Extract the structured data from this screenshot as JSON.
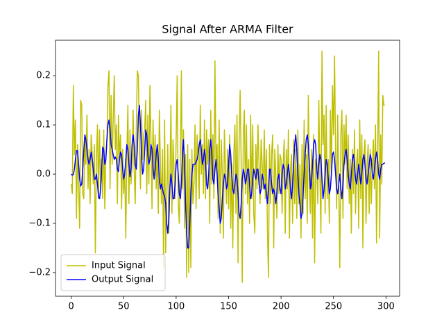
{
  "chart_data": {
    "type": "line",
    "title": "Signal After ARMA Filter",
    "x": [
      0,
      1,
      2,
      3,
      4,
      5,
      6,
      7,
      8,
      9,
      10,
      11,
      12,
      13,
      14,
      15,
      16,
      17,
      18,
      19,
      20,
      21,
      22,
      23,
      24,
      25,
      26,
      27,
      28,
      29,
      30,
      31,
      32,
      33,
      34,
      35,
      36,
      37,
      38,
      39,
      40,
      41,
      42,
      43,
      44,
      45,
      46,
      47,
      48,
      49,
      50,
      51,
      52,
      53,
      54,
      55,
      56,
      57,
      58,
      59,
      60,
      61,
      62,
      63,
      64,
      65,
      66,
      67,
      68,
      69,
      70,
      71,
      72,
      73,
      74,
      75,
      76,
      77,
      78,
      79,
      80,
      81,
      82,
      83,
      84,
      85,
      86,
      87,
      88,
      89,
      90,
      91,
      92,
      93,
      94,
      95,
      96,
      97,
      98,
      99,
      100,
      101,
      102,
      103,
      104,
      105,
      106,
      107,
      108,
      109,
      110,
      111,
      112,
      113,
      114,
      115,
      116,
      117,
      118,
      119,
      120,
      121,
      122,
      123,
      124,
      125,
      126,
      127,
      128,
      129,
      130,
      131,
      132,
      133,
      134,
      135,
      136,
      137,
      138,
      139,
      140,
      141,
      142,
      143,
      144,
      145,
      146,
      147,
      148,
      149,
      150,
      151,
      152,
      153,
      154,
      155,
      156,
      157,
      158,
      159,
      160,
      161,
      162,
      163,
      164,
      165,
      166,
      167,
      168,
      169,
      170,
      171,
      172,
      173,
      174,
      175,
      176,
      177,
      178,
      179,
      180,
      181,
      182,
      183,
      184,
      185,
      186,
      187,
      188,
      189,
      190,
      191,
      192,
      193,
      194,
      195,
      196,
      197,
      198,
      199,
      200,
      201,
      202,
      203,
      204,
      205,
      206,
      207,
      208,
      209,
      210,
      211,
      212,
      213,
      214,
      215,
      216,
      217,
      218,
      219,
      220,
      221,
      222,
      223,
      224,
      225,
      226,
      227,
      228,
      229,
      230,
      231,
      232,
      233,
      234,
      235,
      236,
      237,
      238,
      239,
      240,
      241,
      242,
      243,
      244,
      245,
      246,
      247,
      248,
      249,
      250,
      251,
      252,
      253,
      254,
      255,
      256,
      257,
      258,
      259,
      260,
      261,
      262,
      263,
      264,
      265,
      266,
      267,
      268,
      269,
      270,
      271,
      272,
      273,
      274,
      275,
      276,
      277,
      278,
      279,
      280,
      281,
      282,
      283,
      284,
      285,
      286,
      287,
      288,
      289,
      290,
      291,
      292,
      293,
      294,
      295,
      296,
      297,
      298,
      299
    ],
    "series": [
      {
        "name": "Input Signal",
        "color": "#bfbf00",
        "values": [
          -0.02,
          -0.04,
          0.18,
          0.04,
          0.11,
          -0.09,
          0.06,
          -0.02,
          -0.11,
          0.15,
          0.14,
          -0.04,
          -0.05,
          0.08,
          0.02,
          0.12,
          -0.03,
          0.05,
          -0.06,
          0.08,
          0.04,
          -0.02,
          0.06,
          -0.16,
          0.03,
          0.1,
          -0.05,
          0.09,
          -0.03,
          0.03,
          -0.05,
          0.09,
          -0.07,
          0.03,
          0.07,
          0.18,
          0.21,
          -0.03,
          0.16,
          0.02,
          0.11,
          0.2,
          0.05,
          0.1,
          -0.06,
          0.12,
          0.03,
          0.08,
          -0.07,
          0.05,
          -0.04,
          0.01,
          -0.13,
          0.04,
          0.14,
          -0.06,
          0.09,
          -0.02,
          0.02,
          0.13,
          0.01,
          -0.06,
          0.09,
          0.21,
          0.2,
          0.06,
          -0.03,
          0.13,
          0.03,
          0.08,
          0.09,
          0.15,
          -0.04,
          0.12,
          -0.02,
          0.18,
          0.07,
          -0.07,
          0.11,
          0.0,
          0.08,
          -0.03,
          0.05,
          -0.08,
          0.13,
          0.02,
          -0.06,
          0.05,
          -0.19,
          0.11,
          -0.16,
          -0.05,
          0.06,
          -0.12,
          -0.02,
          0.14,
          -0.08,
          0.07,
          0.01,
          -0.05,
          0.07,
          0.2,
          -0.06,
          -0.1,
          0.02,
          0.21,
          -0.03,
          0.09,
          -0.11,
          0.04,
          -0.21,
          0.06,
          -0.2,
          0.03,
          -0.19,
          0.05,
          -0.06,
          -0.02,
          0.1,
          -0.07,
          0.08,
          0.03,
          -0.05,
          0.14,
          0.0,
          0.06,
          -0.04,
          0.11,
          -0.05,
          0.09,
          0.02,
          0.07,
          -0.1,
          0.13,
          -0.02,
          0.08,
          -0.05,
          0.23,
          0.02,
          0.06,
          -0.09,
          0.11,
          -0.12,
          0.07,
          0.0,
          -0.13,
          0.09,
          0.01,
          -0.06,
          0.05,
          -0.07,
          0.08,
          -0.11,
          0.02,
          -0.15,
          0.04,
          0.1,
          -0.08,
          0.12,
          -0.18,
          0.06,
          0.17,
          0.02,
          -0.22,
          0.08,
          0.13,
          -0.04,
          0.1,
          -0.06,
          0.03,
          -0.1,
          0.12,
          -0.05,
          0.1,
          -0.08,
          -0.12,
          0.06,
          -0.03,
          0.1,
          0.02,
          -0.06,
          0.07,
          0.02,
          -0.03,
          0.09,
          -0.05,
          0.05,
          -0.11,
          -0.21,
          0.06,
          -0.06,
          0.04,
          0.08,
          -0.15,
          0.05,
          0.0,
          -0.09,
          0.06,
          -0.04,
          0.04,
          0.03,
          -0.08,
          0.02,
          0.07,
          -0.12,
          0.05,
          -0.03,
          0.09,
          -0.13,
          0.01,
          0.04,
          -0.1,
          0.07,
          -0.06,
          0.05,
          -0.09,
          0.09,
          -0.06,
          0.02,
          -0.13,
          0.06,
          -0.08,
          0.11,
          -0.05,
          0.04,
          -0.1,
          0.16,
          -0.03,
          -0.08,
          0.05,
          -0.13,
          0.08,
          -0.18,
          0.03,
          0.02,
          -0.06,
          0.15,
          0.0,
          -0.12,
          0.25,
          0.06,
          0.12,
          -0.08,
          0.14,
          -0.05,
          0.03,
          -0.1,
          0.13,
          0.0,
          0.18,
          0.08,
          0.24,
          0.04,
          -0.07,
          0.12,
          -0.02,
          -0.19,
          0.08,
          0.13,
          -0.09,
          0.1,
          0.02,
          0.12,
          -0.03,
          0.08,
          -0.06,
          0.03,
          -0.12,
          0.05,
          -0.04,
          0.09,
          -0.08,
          0.02,
          0.05,
          -0.11,
          0.11,
          -0.05,
          0.08,
          -0.15,
          0.04,
          0.07,
          -0.1,
          0.02,
          0.06,
          -0.08,
          0.05,
          -0.06,
          0.01,
          0.07,
          -0.03,
          0.1,
          -0.14,
          0.02,
          0.25,
          -0.13,
          0.08,
          -0.02,
          0.16,
          0.14,
          0.14
        ]
      },
      {
        "name": "Output Signal",
        "color": "#0000ff",
        "values": [
          0.0,
          -0.002,
          -0.001,
          0.01,
          0.03,
          0.048,
          0.048,
          0.02,
          -0.01,
          -0.024,
          -0.02,
          0.01,
          0.05,
          0.08,
          0.07,
          0.05,
          0.03,
          0.02,
          0.03,
          0.045,
          0.03,
          0.01,
          -0.01,
          -0.01,
          0.0,
          -0.02,
          -0.045,
          -0.05,
          -0.03,
          0.01,
          0.055,
          0.05,
          0.02,
          0.03,
          0.07,
          0.1,
          0.11,
          0.09,
          0.06,
          0.05,
          0.04,
          0.03,
          0.035,
          0.03,
          0.01,
          0.005,
          0.03,
          0.045,
          0.04,
          0.01,
          -0.01,
          0.0,
          0.03,
          0.06,
          0.05,
          0.02,
          -0.005,
          0.01,
          0.06,
          0.08,
          0.06,
          0.02,
          0.01,
          0.05,
          0.12,
          0.14,
          0.1,
          0.04,
          0.0,
          0.01,
          0.05,
          0.09,
          0.08,
          0.04,
          0.02,
          0.03,
          0.06,
          0.05,
          0.01,
          -0.01,
          0.01,
          0.04,
          0.06,
          0.03,
          -0.01,
          -0.03,
          -0.02,
          -0.03,
          -0.04,
          -0.045,
          -0.06,
          -0.1,
          -0.12,
          -0.09,
          -0.03,
          0.0,
          -0.02,
          -0.05,
          -0.05,
          -0.02,
          0.02,
          0.03,
          0.0,
          -0.04,
          -0.05,
          -0.02,
          0.04,
          0.07,
          0.02,
          -0.06,
          -0.12,
          -0.15,
          -0.15,
          -0.1,
          -0.04,
          0.0,
          0.02,
          0.02,
          0.02,
          0.025,
          0.03,
          0.04,
          0.06,
          0.07,
          0.05,
          0.02,
          0.03,
          0.05,
          0.03,
          -0.02,
          -0.03,
          0.0,
          0.05,
          0.07,
          0.04,
          -0.01,
          -0.02,
          0.01,
          0.03,
          0.0,
          -0.04,
          -0.07,
          -0.1,
          -0.09,
          -0.05,
          -0.02,
          0.0,
          -0.01,
          -0.03,
          -0.02,
          0.02,
          0.06,
          0.04,
          0.0,
          -0.03,
          -0.04,
          -0.02,
          0.0,
          -0.01,
          -0.04,
          -0.08,
          -0.09,
          -0.06,
          -0.01,
          0.01,
          0.0,
          -0.02,
          -0.01,
          0.01,
          0.01,
          -0.02,
          -0.05,
          -0.04,
          -0.01,
          0.01,
          0.0,
          -0.01,
          0.01,
          0.01,
          -0.02,
          -0.04,
          -0.03,
          0.0,
          -0.01,
          -0.03,
          -0.02,
          -0.04,
          -0.06,
          -0.03,
          0.01,
          0.01,
          -0.02,
          -0.04,
          -0.03,
          -0.04,
          -0.06,
          -0.04,
          -0.01,
          0.0,
          -0.03,
          -0.04,
          0.0,
          0.02,
          0.01,
          -0.03,
          -0.02,
          0.0,
          0.02,
          0.0,
          -0.03,
          -0.05,
          -0.02,
          0.02,
          0.06,
          0.08,
          0.05,
          0.0,
          -0.04,
          -0.06,
          -0.09,
          -0.08,
          -0.04,
          0.0,
          0.04,
          0.07,
          0.08,
          0.06,
          0.02,
          -0.03,
          -0.02,
          0.02,
          0.06,
          0.07,
          0.06,
          0.01,
          -0.01,
          0.02,
          0.04,
          0.03,
          -0.01,
          -0.05,
          -0.03,
          0.0,
          0.03,
          0.02,
          -0.01,
          -0.04,
          -0.03,
          0.0,
          0.04,
          0.045,
          0.03,
          0.0,
          -0.03,
          -0.04,
          -0.02,
          0.0,
          -0.03,
          -0.05,
          -0.02,
          0.02,
          0.04,
          0.05,
          0.03,
          0.0,
          -0.02,
          -0.03,
          0.0,
          0.03,
          0.04,
          0.02,
          -0.01,
          -0.02,
          0.0,
          0.02,
          0.0,
          -0.02,
          0.0,
          0.03,
          0.04,
          0.02,
          -0.01,
          -0.02,
          0.0,
          0.02,
          0.04,
          0.03,
          0.0,
          -0.01,
          0.01,
          0.03,
          0.045,
          0.03,
          0.0,
          -0.01,
          0.01,
          0.02,
          0.02,
          0.022,
          0.023
        ]
      }
    ],
    "xlim": [
      -15,
      313
    ],
    "xticks": [
      0,
      50,
      100,
      150,
      200,
      250,
      300
    ],
    "ylim": [
      -0.248,
      0.272
    ],
    "yticks": [
      {
        "value": -0.2,
        "label": "−0.2"
      },
      {
        "value": -0.1,
        "label": "−0.1"
      },
      {
        "value": 0,
        "label": "0.0"
      },
      0.1,
      0.2
    ],
    "grid": false,
    "legend": "lower left"
  }
}
